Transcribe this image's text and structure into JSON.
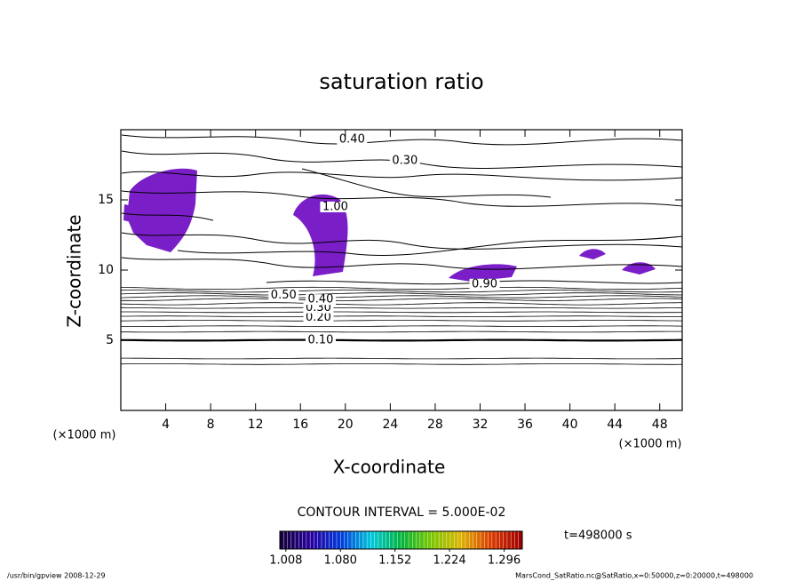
{
  "chart_data": {
    "type": "contour",
    "title": "saturation ratio",
    "x_label": "X-coordinate",
    "y_label": "Z-coordinate",
    "x_unit": "(×1000 m)",
    "y_unit": "(×1000 m)",
    "xlim": [
      0,
      50
    ],
    "xticks": [
      4,
      8,
      12,
      16,
      20,
      24,
      28,
      32,
      36,
      40,
      44,
      48
    ],
    "ylim": [
      0,
      20
    ],
    "yticks": [
      5,
      10,
      15
    ],
    "contour_z": [
      3.3,
      3.7,
      5.0,
      5.6,
      6.0,
      6.4,
      6.7,
      7.0,
      7.3,
      7.6,
      7.9,
      8.1,
      8.3,
      8.5,
      8.7
    ],
    "contour_labels": [
      {
        "label": "0.10",
        "x": 17.8,
        "z": 5.0
      },
      {
        "label": "0.20",
        "x": 17.6,
        "z": 6.6
      },
      {
        "label": "0.30",
        "x": 17.6,
        "z": 7.3
      },
      {
        "label": "0.40",
        "x": 17.8,
        "z": 7.9
      },
      {
        "label": "0.50",
        "x": 14.5,
        "z": 8.2
      },
      {
        "label": "1.00",
        "x": 19.1,
        "z": 14.5
      },
      {
        "label": "0.90",
        "x": 32.4,
        "z": 9.0
      },
      {
        "label": "0.40",
        "x": 20.6,
        "z": 19.3
      },
      {
        "label": "0.30",
        "x": 25.3,
        "z": 17.8
      }
    ],
    "contour_interval": "CONTOUR INTERVAL = 5.000E-02",
    "time_label": "t=498000 s",
    "clim": [
      1.0,
      1.32
    ],
    "colorbar_ticks": [
      1.008,
      {
        "value": 1.08,
        "label": "1.080"
      },
      1.152,
      1.224,
      1.296
    ],
    "footer_left": "/usr/bin/gpview  2008-12-29",
    "footer_right": "MarsCond_SatRatio.nc@SatRatio,x=0:50000,z=0:20000,t=498000"
  }
}
